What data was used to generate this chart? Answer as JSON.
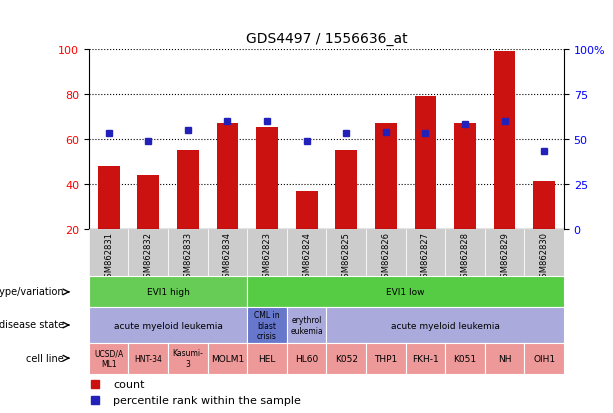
{
  "title": "GDS4497 / 1556636_at",
  "samples": [
    "GSM862831",
    "GSM862832",
    "GSM862833",
    "GSM862834",
    "GSM862823",
    "GSM862824",
    "GSM862825",
    "GSM862826",
    "GSM862827",
    "GSM862828",
    "GSM862829",
    "GSM862830"
  ],
  "bar_values": [
    48,
    44,
    55,
    67,
    65,
    37,
    55,
    67,
    79,
    67,
    99,
    41
  ],
  "percentile_values": [
    53,
    49,
    55,
    60,
    60,
    49,
    53,
    54,
    53,
    58,
    60,
    43
  ],
  "bar_bottom": 20,
  "ylim_left": [
    20,
    100
  ],
  "ylim_right": [
    0,
    100
  ],
  "yticks_left": [
    20,
    40,
    60,
    80,
    100
  ],
  "ytick_labels_left": [
    "20",
    "40",
    "60",
    "80",
    "100"
  ],
  "yticks_right": [
    0,
    25,
    50,
    75,
    100
  ],
  "ytick_labels_right": [
    "0",
    "25",
    "50",
    "75",
    "100%"
  ],
  "bar_color": "#cc1111",
  "percentile_color": "#2222bb",
  "chart_bg": "#ffffff",
  "fig_bg": "#ffffff",
  "tick_box_color": "#cccccc",
  "genotype_colors": [
    "#66cc55",
    "#55cc44"
  ],
  "disease_color_main": "#aaaadd",
  "disease_color_cml": "#6677cc",
  "cell_line_color": "#ee9999",
  "geno_groups": [
    {
      "label": "EVI1 high",
      "start": 0,
      "end": 4
    },
    {
      "label": "EVI1 low",
      "start": 4,
      "end": 12
    }
  ],
  "disease_groups": [
    {
      "label": "acute myeloid leukemia",
      "start": 0,
      "end": 4,
      "type": "main"
    },
    {
      "label": "CML in\nblast\ncrisis",
      "start": 4,
      "end": 5,
      "type": "cml"
    },
    {
      "label": "erythrol\neukemia",
      "start": 5,
      "end": 6,
      "type": "main"
    },
    {
      "label": "acute myeloid leukemia",
      "start": 6,
      "end": 12,
      "type": "main"
    }
  ],
  "cell_lines": [
    {
      "label": "UCSD/A\nML1",
      "start": 0,
      "end": 1
    },
    {
      "label": "HNT-34",
      "start": 1,
      "end": 2
    },
    {
      "label": "Kasumi-\n3",
      "start": 2,
      "end": 3
    },
    {
      "label": "MOLM1",
      "start": 3,
      "end": 4
    },
    {
      "label": "HEL",
      "start": 4,
      "end": 5
    },
    {
      "label": "HL60",
      "start": 5,
      "end": 6
    },
    {
      "label": "K052",
      "start": 6,
      "end": 7
    },
    {
      "label": "THP1",
      "start": 7,
      "end": 8
    },
    {
      "label": "FKH-1",
      "start": 8,
      "end": 9
    },
    {
      "label": "K051",
      "start": 9,
      "end": 10
    },
    {
      "label": "NH",
      "start": 10,
      "end": 11
    },
    {
      "label": "OIH1",
      "start": 11,
      "end": 12
    }
  ]
}
